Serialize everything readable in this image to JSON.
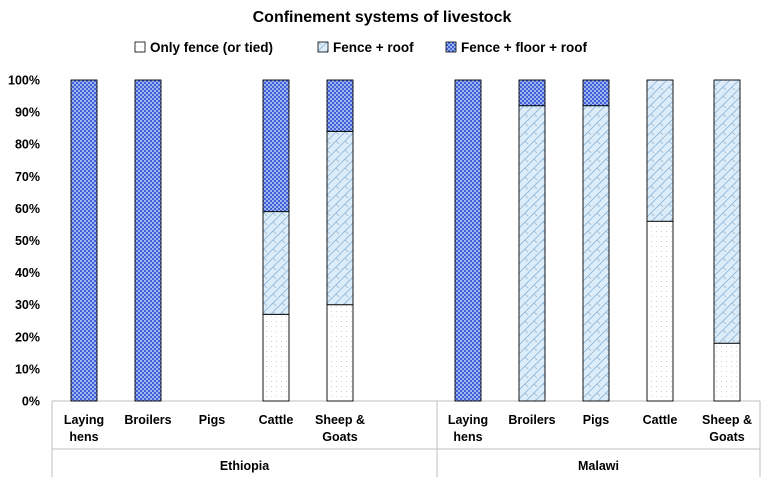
{
  "chart_data": {
    "type": "bar",
    "stacked": true,
    "percent": true,
    "title": "Confinement systems of livestock",
    "xlabel": "",
    "ylabel": "",
    "ylim": [
      0,
      100
    ],
    "yticks": [
      "0%",
      "10%",
      "20%",
      "30%",
      "40%",
      "50%",
      "60%",
      "70%",
      "80%",
      "90%",
      "100%"
    ],
    "groups": [
      {
        "name": "Ethiopia",
        "categories": [
          [
            "Laying",
            "hens"
          ],
          [
            "Broilers"
          ],
          [
            "Pigs"
          ],
          [
            "Cattle"
          ],
          [
            "Sheep &",
            "Goats"
          ]
        ]
      },
      {
        "name": "Malawi",
        "categories": [
          [
            "Laying",
            "hens"
          ],
          [
            "Broilers"
          ],
          [
            "Pigs"
          ],
          [
            "Cattle"
          ],
          [
            "Sheep &",
            "Goats"
          ]
        ]
      }
    ],
    "series": [
      {
        "name": "Only fence (or tied)",
        "pattern": "dots",
        "color": "#ffffff",
        "values": [
          0,
          0,
          0,
          27,
          30,
          0,
          0,
          0,
          56,
          18
        ]
      },
      {
        "name": "Fence + roof",
        "pattern": "diagonal-brick",
        "color": "#dcecf8",
        "values": [
          0,
          0,
          0,
          32,
          54,
          0,
          92,
          92,
          44,
          82
        ]
      },
      {
        "name": "Fence + floor + roof",
        "pattern": "checker",
        "color": "#5f80e6",
        "values": [
          100,
          100,
          0,
          41,
          16,
          100,
          8,
          8,
          0,
          0
        ]
      }
    ],
    "legend_position": "top",
    "grid": false
  }
}
